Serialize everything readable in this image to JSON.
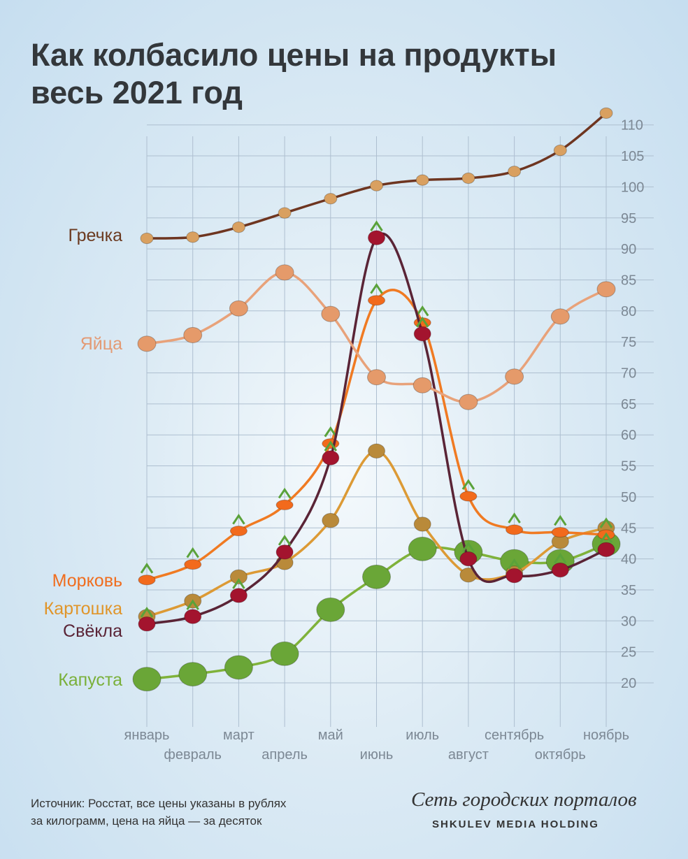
{
  "title_line1": "Как колбасило цены на продукты",
  "title_line2": "весь 2021 год",
  "chart_data": {
    "type": "line",
    "title": "Как колбасило цены на продукты весь 2021 год",
    "xlabel": "",
    "ylabel": "",
    "categories": [
      "январь",
      "февраль",
      "март",
      "апрель",
      "май",
      "июнь",
      "июль",
      "август",
      "сентябрь",
      "октябрь",
      "ноябрь"
    ],
    "yticks": [
      20,
      25,
      30,
      35,
      40,
      45,
      50,
      55,
      60,
      65,
      70,
      75,
      80,
      85,
      90,
      95,
      100,
      105,
      110
    ],
    "ylim": [
      17,
      113
    ],
    "grid": true,
    "legend": "inline-left",
    "series": [
      {
        "name": "Гречка",
        "color": "#6e3520",
        "marker": "#d9a060",
        "values": [
          91.7,
          91.9,
          93.5,
          95.8,
          98.1,
          100.2,
          101.1,
          101.4,
          102.5,
          105.9,
          111.9
        ]
      },
      {
        "name": "Яйца",
        "color": "#e8a27a",
        "marker": "#e59a6a",
        "values": [
          74.7,
          76.1,
          80.4,
          86.2,
          79.5,
          69.3,
          68.0,
          65.3,
          69.4,
          79.1,
          83.5
        ]
      },
      {
        "name": "Морковь",
        "color": "#f07a22",
        "marker": "#f26a1c",
        "values": [
          36.6,
          39.1,
          44.5,
          48.7,
          58.6,
          81.7,
          78.1,
          50.1,
          44.7,
          44.3,
          43.9
        ]
      },
      {
        "name": "Картошка",
        "color": "#dc9a35",
        "marker": "#b98a3a",
        "values": [
          30.7,
          33.2,
          37.1,
          39.4,
          46.2,
          57.4,
          45.6,
          37.4,
          37.7,
          42.8,
          45.0
        ]
      },
      {
        "name": "Свёкла",
        "color": "#5a2436",
        "marker": "#a3142e",
        "values": [
          29.5,
          30.7,
          34.1,
          41.1,
          56.3,
          91.8,
          76.3,
          40.0,
          37.3,
          38.2,
          41.5
        ]
      },
      {
        "name": "Капуста",
        "color": "#7fb23a",
        "marker": "#6aa637",
        "values": [
          20.6,
          21.4,
          22.5,
          24.7,
          31.8,
          37.1,
          41.6,
          41.1,
          39.6,
          39.6,
          42.4
        ]
      }
    ]
  },
  "footer": {
    "source_line1": "Источник: Росстат, все цены указаны в рублях",
    "source_line2": "за килограмм, цена на яйца — за десяток",
    "brand": "Сеть городских порталов",
    "brand_sub": "SHKULEV MEDIA HOLDING"
  }
}
